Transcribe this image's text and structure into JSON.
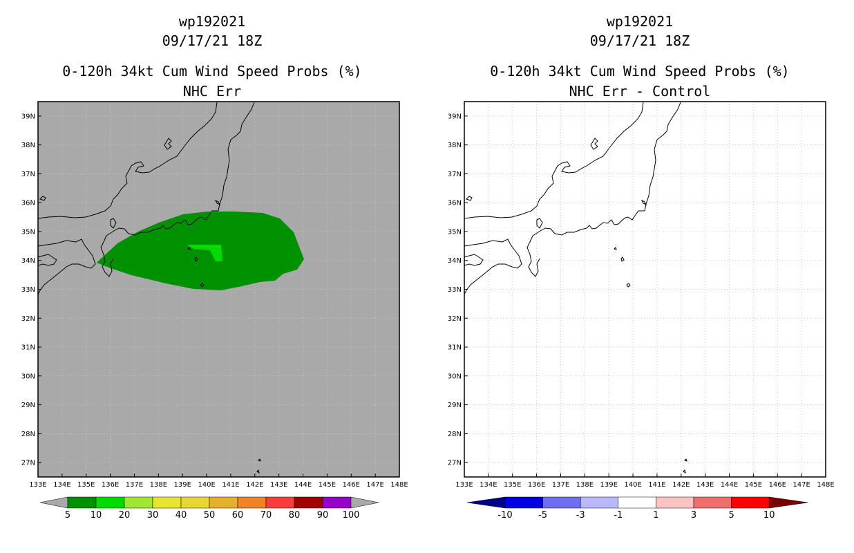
{
  "left_panel": {
    "storm_id": "wp192021",
    "datetime": "09/17/21 18Z",
    "product": "0-120h 34kt Cum Wind Speed Probs (%)",
    "subtitle": "NHC Err",
    "background_color": "#a9a9a9",
    "colorbar": {
      "labels": [
        "5",
        "10",
        "20",
        "30",
        "40",
        "50",
        "60",
        "70",
        "80",
        "90",
        "100"
      ],
      "colors": [
        "#009100",
        "#00dc00",
        "#a0e632",
        "#e6e632",
        "#e6d732",
        "#e6af2d",
        "#f08228",
        "#fa3c3c",
        "#a00000",
        "#9600c8"
      ],
      "end_color": "#a9a9a9"
    },
    "shaded_areas": [
      {
        "level": "5-10",
        "color": "#009100"
      },
      {
        "level": "10-20",
        "color": "#00dc00"
      }
    ]
  },
  "right_panel": {
    "storm_id": "wp192021",
    "datetime": "09/17/21 18Z",
    "product": "0-120h 34kt Cum Wind Speed Probs (%)",
    "subtitle": "NHC Err - Control",
    "background_color": "#ffffff",
    "colorbar": {
      "labels": [
        "-10",
        "-5",
        "-3",
        "-1",
        "1",
        "3",
        "5",
        "10"
      ],
      "colors": [
        "#0000e6",
        "#6e6ef0",
        "#b9b9fa",
        "#ffffff",
        "#fac3c3",
        "#f06e6e",
        "#ff0000"
      ],
      "left_end_color": "#00008c",
      "right_end_color": "#780000"
    }
  },
  "map": {
    "lon_labels": [
      "133E",
      "134E",
      "135E",
      "136E",
      "137E",
      "138E",
      "139E",
      "140E",
      "141E",
      "142E",
      "143E",
      "144E",
      "145E",
      "146E",
      "147E",
      "148E"
    ],
    "lat_labels": [
      "27N",
      "28N",
      "29N",
      "30N",
      "31N",
      "32N",
      "33N",
      "34N",
      "35N",
      "36N",
      "37N",
      "38N",
      "39N"
    ],
    "lon_range": [
      133,
      148
    ],
    "lat_range": [
      26.5,
      39.5
    ]
  }
}
